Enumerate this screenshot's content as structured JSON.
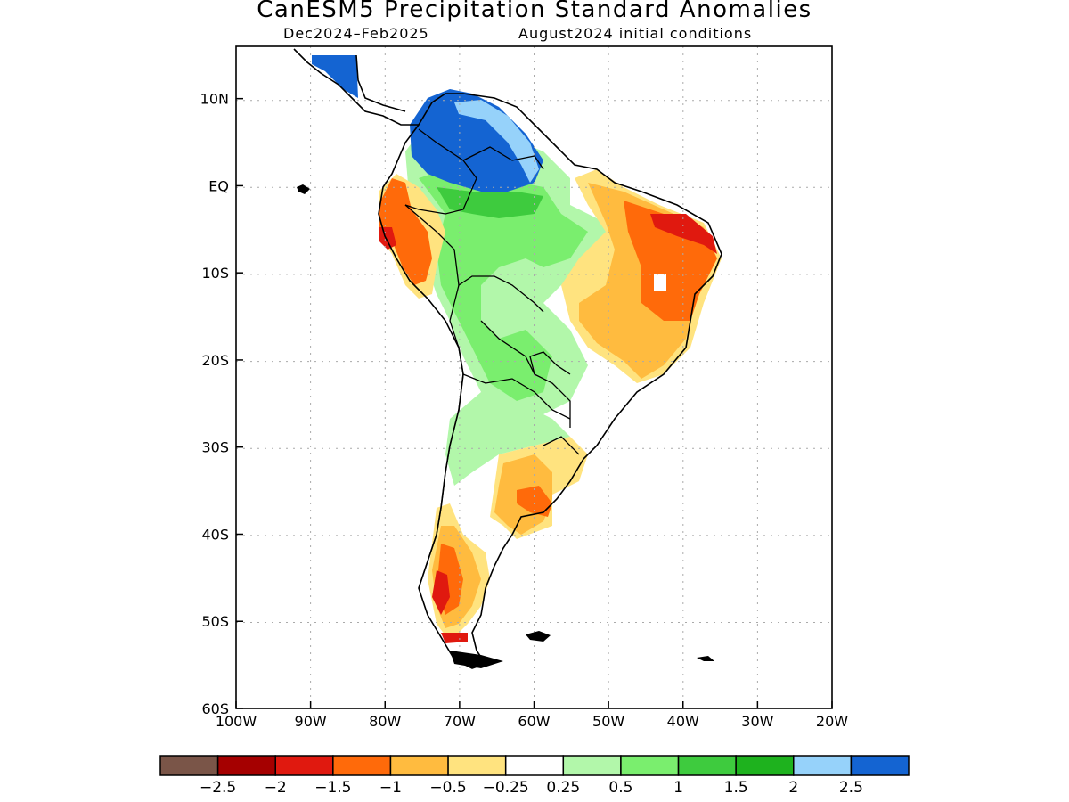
{
  "title": "CanESM5 Precipitation Standard Anomalies",
  "subtitle_left": "Dec2024–Feb2025",
  "subtitle_right": "August2024 initial conditions",
  "map": {
    "lon_range": [
      -100,
      -20
    ],
    "lat_range": [
      -60,
      16
    ],
    "grid": "dotted",
    "lon_ticks": [
      {
        "value": -100,
        "label": "100W"
      },
      {
        "value": -90,
        "label": "90W"
      },
      {
        "value": -80,
        "label": "80W"
      },
      {
        "value": -70,
        "label": "70W"
      },
      {
        "value": -60,
        "label": "60W"
      },
      {
        "value": -50,
        "label": "50W"
      },
      {
        "value": -40,
        "label": "40W"
      },
      {
        "value": -30,
        "label": "30W"
      },
      {
        "value": -20,
        "label": "20W"
      }
    ],
    "lat_ticks": [
      {
        "value": 10,
        "label": "10N"
      },
      {
        "value": 0,
        "label": "EQ"
      },
      {
        "value": -10,
        "label": "10S"
      },
      {
        "value": -20,
        "label": "20S"
      },
      {
        "value": -30,
        "label": "30S"
      },
      {
        "value": -40,
        "label": "40S"
      },
      {
        "value": -50,
        "label": "50S"
      },
      {
        "value": -60,
        "label": "60S"
      }
    ]
  },
  "colorbar": {
    "colors": [
      "#7a5548",
      "#a50000",
      "#e0190f",
      "#ff6a0a",
      "#ffbb3f",
      "#ffe37f",
      "#ffffff",
      "#b2f7aa",
      "#7aee6e",
      "#3ecb3e",
      "#1eb21e",
      "#96d2fa",
      "#1464d2"
    ],
    "labels": [
      "−2.5",
      "−2",
      "−1.5",
      "−1",
      "−0.5",
      "−0.25",
      "0.25",
      "0.5",
      "1",
      "1.5",
      "2",
      "2.5"
    ]
  }
}
